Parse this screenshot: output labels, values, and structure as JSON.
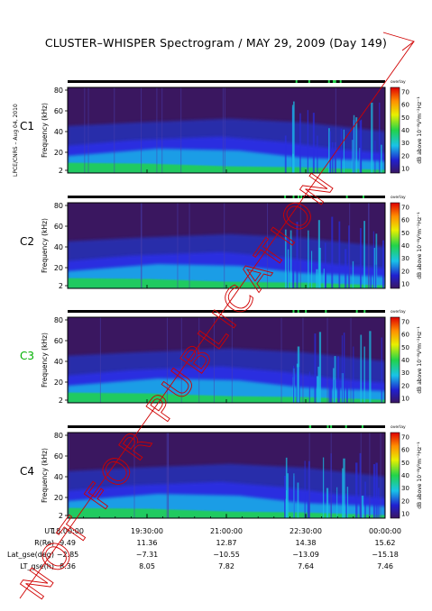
{
  "chart_data": [
    {
      "type": "heatmap",
      "title": "CLUSTER–WHISPER Spectrogram / MAY 29, 2009 (Day 149)",
      "panel": "C1",
      "ylabel": "Frequency (kHz)",
      "ylim": [
        2,
        80
      ],
      "yticks": [
        "80",
        "60",
        "40",
        "20",
        "2"
      ],
      "x_ticks": [
        "18:00:00",
        "19:30:00",
        "21:00:00",
        "22:30:00",
        "00:00:00"
      ],
      "colorbar": {
        "label": "dB above 10⁻⁸V²m⁻²Hz⁻¹",
        "ticks": [
          "70",
          "60",
          "50",
          "40",
          "30",
          "20",
          "10"
        ],
        "header": "overlay"
      }
    },
    {
      "type": "heatmap",
      "panel": "C2",
      "ylabel": "Frequency (kHz)",
      "ylim": [
        2,
        80
      ],
      "yticks": [
        "80",
        "60",
        "40",
        "20",
        "2"
      ],
      "colorbar": {
        "label": "dB above 10⁻⁸V²m⁻²Hz⁻¹",
        "ticks": [
          "70",
          "60",
          "50",
          "40",
          "30",
          "20",
          "10"
        ],
        "header": "overlay"
      }
    },
    {
      "type": "heatmap",
      "panel": "C3",
      "ylabel": "Frequency (kHz)",
      "ylim": [
        2,
        80
      ],
      "yticks": [
        "80",
        "60",
        "40",
        "20",
        "2"
      ],
      "colorbar": {
        "label": "dB above 10⁻⁸V²m⁻²Hz⁻¹",
        "ticks": [
          "70",
          "60",
          "50",
          "40",
          "30",
          "20",
          "10"
        ],
        "header": "overlay"
      }
    },
    {
      "type": "heatmap",
      "panel": "C4",
      "ylabel": "Frequency (kHz)",
      "ylim": [
        2,
        80
      ],
      "yticks": [
        "80",
        "60",
        "40",
        "20",
        "2"
      ],
      "colorbar": {
        "label": "dB above 10⁻⁸V²m⁻²Hz⁻¹",
        "ticks": [
          "70",
          "60",
          "50",
          "40",
          "30",
          "20",
          "10"
        ],
        "header": "overlay"
      }
    }
  ],
  "page": {
    "title": "CLUSTER–WHISPER Spectrogram / MAY 29, 2009 (Day 149)",
    "side_label": "LPCE/CNRS – Aug 04, 2010",
    "panels": [
      {
        "label": "C1",
        "label_color": "#000000"
      },
      {
        "label": "C2",
        "label_color": "#000000"
      },
      {
        "label": "C3",
        "label_color": "#00b000"
      },
      {
        "label": "C4",
        "label_color": "#000000"
      }
    ],
    "ylabel": "Frequency (kHz)",
    "yticks": [
      "80",
      "60",
      "40",
      "20",
      "2"
    ],
    "cbar_label": "dB above 10⁻⁸V²m⁻²Hz⁻¹",
    "cbar_ticks": [
      "70",
      "60",
      "50",
      "40",
      "30",
      "20",
      "10"
    ],
    "cbar_header": "overlay",
    "ephemeris": [
      {
        "label": "UT",
        "values": [
          "18:00:00",
          "19:30:00",
          "21:00:00",
          "22:30:00",
          "00:00:00"
        ]
      },
      {
        "label": "R(Re)",
        "values": [
          "9.49",
          "11.36",
          "12.87",
          "14.38",
          "15.62"
        ]
      },
      {
        "label": "Lat_gse(deg)",
        "values": [
          "−2.85",
          "−7.31",
          "−10.55",
          "−13.09",
          "−15.18"
        ]
      },
      {
        "label": "LT_gse(h)",
        "values": [
          "8.36",
          "8.05",
          "7.82",
          "7.64",
          "7.46"
        ]
      }
    ],
    "stamp": "NOT FOR PUBLICATION",
    "colors": {
      "background": "#3a1760",
      "band_blue": "#2a2ee0",
      "band_cyan": "#19c3e8",
      "band_green": "#22d34a",
      "stamp_red": "#d00000"
    }
  }
}
